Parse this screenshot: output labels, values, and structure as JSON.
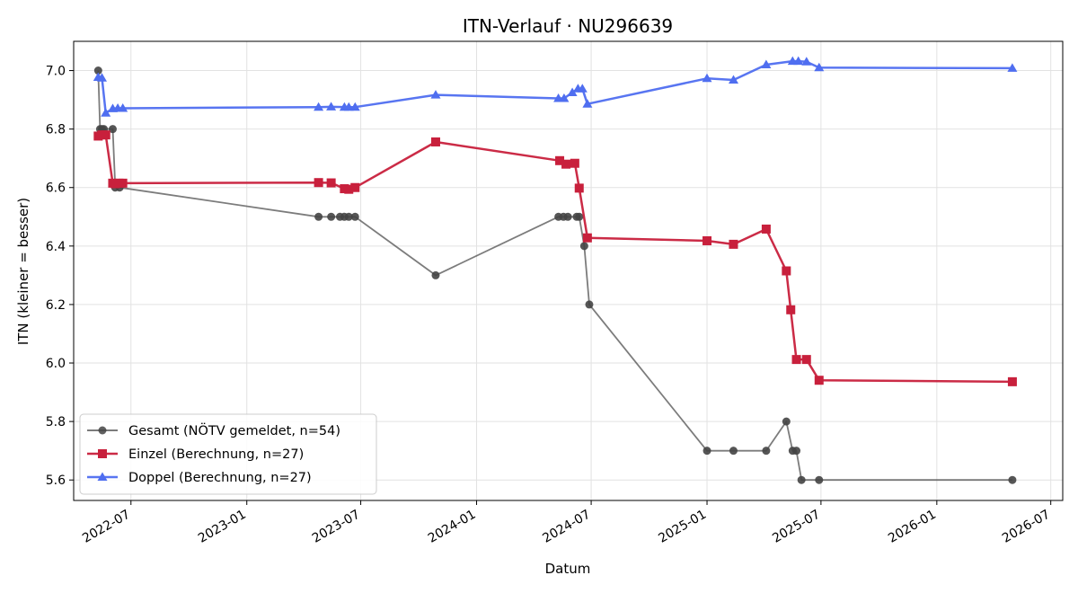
{
  "chart_data": {
    "type": "line",
    "title": "ITN-Verlauf · NU296639",
    "xlabel": "Datum",
    "ylabel": "ITN  (kleiner = besser)",
    "xlim": [
      "2022-04-01",
      "2026-07-20"
    ],
    "ylim": [
      5.53,
      7.1
    ],
    "x_ticks": [
      "2022-07",
      "2023-01",
      "2023-07",
      "2024-01",
      "2024-07",
      "2025-01",
      "2025-07",
      "2026-01",
      "2026-07"
    ],
    "y_ticks": [
      5.6,
      5.8,
      6.0,
      6.2,
      6.4,
      6.6,
      6.8,
      7.0
    ],
    "grid": true,
    "legend_position": "bottom-left",
    "series": [
      {
        "name": "Gesamt (NÖTV gemeldet, n=54)",
        "color": "#444444",
        "marker": "circle",
        "points": [
          [
            "2022-05-10",
            7.0
          ],
          [
            "2022-05-13",
            6.8
          ],
          [
            "2022-05-16",
            6.8
          ],
          [
            "2022-05-19",
            6.8
          ],
          [
            "2022-06-02",
            6.8
          ],
          [
            "2022-06-06",
            6.6
          ],
          [
            "2022-06-13",
            6.6
          ],
          [
            "2023-04-25",
            6.5
          ],
          [
            "2023-05-15",
            6.5
          ],
          [
            "2023-05-29",
            6.5
          ],
          [
            "2023-06-05",
            6.5
          ],
          [
            "2023-06-12",
            6.5
          ],
          [
            "2023-06-22",
            6.5
          ],
          [
            "2023-10-28",
            6.3
          ],
          [
            "2024-05-10",
            6.5
          ],
          [
            "2024-05-18",
            6.5
          ],
          [
            "2024-05-25",
            6.5
          ],
          [
            "2024-06-08",
            6.5
          ],
          [
            "2024-06-12",
            6.5
          ],
          [
            "2024-06-20",
            6.4
          ],
          [
            "2024-06-28",
            6.2
          ],
          [
            "2025-01-01",
            5.7
          ],
          [
            "2025-02-12",
            5.7
          ],
          [
            "2025-04-05",
            5.7
          ],
          [
            "2025-05-07",
            5.8
          ],
          [
            "2025-05-17",
            5.7
          ],
          [
            "2025-05-23",
            5.7
          ],
          [
            "2025-05-31",
            5.6
          ],
          [
            "2025-06-28",
            5.6
          ],
          [
            "2026-05-01",
            5.6
          ]
        ]
      },
      {
        "name": "Einzel (Berechnung, n=27)",
        "color": "#c8203c",
        "marker": "square",
        "points": [
          [
            "2022-05-10",
            6.776
          ],
          [
            "2022-05-16",
            6.78
          ],
          [
            "2022-05-22",
            6.78
          ],
          [
            "2022-06-02",
            6.615
          ],
          [
            "2022-06-06",
            6.613
          ],
          [
            "2022-06-12",
            6.615
          ],
          [
            "2022-06-18",
            6.615
          ],
          [
            "2023-04-25",
            6.617
          ],
          [
            "2023-05-15",
            6.616
          ],
          [
            "2023-06-05",
            6.596
          ],
          [
            "2023-06-12",
            6.594
          ],
          [
            "2023-06-22",
            6.6
          ],
          [
            "2023-10-28",
            6.756
          ],
          [
            "2024-05-12",
            6.692
          ],
          [
            "2024-05-22",
            6.68
          ],
          [
            "2024-06-05",
            6.683
          ],
          [
            "2024-06-12",
            6.598
          ],
          [
            "2024-06-25",
            6.428
          ],
          [
            "2025-01-01",
            6.418
          ],
          [
            "2025-02-12",
            6.406
          ],
          [
            "2025-04-05",
            6.458
          ],
          [
            "2025-05-07",
            6.315
          ],
          [
            "2025-05-14",
            6.182
          ],
          [
            "2025-05-23",
            6.012
          ],
          [
            "2025-06-08",
            6.012
          ],
          [
            "2025-06-28",
            5.941
          ],
          [
            "2026-05-01",
            5.936
          ]
        ]
      },
      {
        "name": "Doppel (Berechnung, n=27)",
        "color": "#4f6ef0",
        "marker": "triangle",
        "points": [
          [
            "2022-05-10",
            6.977
          ],
          [
            "2022-05-16",
            6.975
          ],
          [
            "2022-05-22",
            6.855
          ],
          [
            "2022-06-02",
            6.87
          ],
          [
            "2022-06-10",
            6.871
          ],
          [
            "2022-06-18",
            6.871
          ],
          [
            "2023-04-25",
            6.875
          ],
          [
            "2023-05-15",
            6.876
          ],
          [
            "2023-06-05",
            6.875
          ],
          [
            "2023-06-12",
            6.875
          ],
          [
            "2023-06-22",
            6.875
          ],
          [
            "2023-10-28",
            6.917
          ],
          [
            "2024-05-10",
            6.905
          ],
          [
            "2024-05-19",
            6.905
          ],
          [
            "2024-06-01",
            6.925
          ],
          [
            "2024-06-10",
            6.938
          ],
          [
            "2024-06-17",
            6.938
          ],
          [
            "2024-06-25",
            6.886
          ],
          [
            "2025-01-01",
            6.973
          ],
          [
            "2025-02-12",
            6.968
          ],
          [
            "2025-04-05",
            7.02
          ],
          [
            "2025-05-17",
            7.032
          ],
          [
            "2025-05-26",
            7.032
          ],
          [
            "2025-06-08",
            7.03
          ],
          [
            "2025-06-28",
            7.01
          ],
          [
            "2026-05-01",
            7.008
          ]
        ]
      }
    ]
  }
}
